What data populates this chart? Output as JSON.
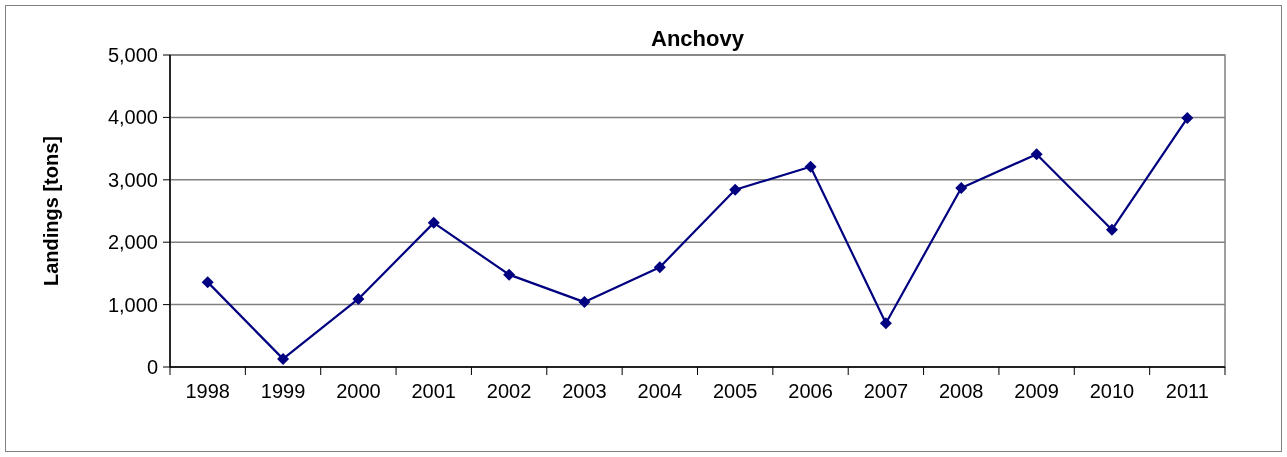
{
  "chart_data": {
    "type": "line",
    "title": "Anchovy",
    "ylabel": "Landings [tons]",
    "categories": [
      "1998",
      "1999",
      "2000",
      "2001",
      "2002",
      "2003",
      "2004",
      "2005",
      "2006",
      "2007",
      "2008",
      "2009",
      "2010",
      "2011"
    ],
    "series": [
      {
        "color": "#000080",
        "values": [
          1360,
          130,
          1090,
          2310,
          1480,
          1040,
          1600,
          2840,
          3210,
          700,
          2870,
          3410,
          2200,
          3990
        ]
      }
    ],
    "ylim": [
      0,
      5000
    ],
    "yticks": [
      {
        "value": 0,
        "label": "0"
      },
      {
        "value": 1000,
        "label": "1,000"
      },
      {
        "value": 2000,
        "label": "2,000"
      },
      {
        "value": 3000,
        "label": "3,000"
      },
      {
        "value": 4000,
        "label": "4,000"
      },
      {
        "value": 5000,
        "label": "5,000"
      }
    ],
    "grid": "y",
    "marker": "diamond",
    "line_style": "solid"
  }
}
